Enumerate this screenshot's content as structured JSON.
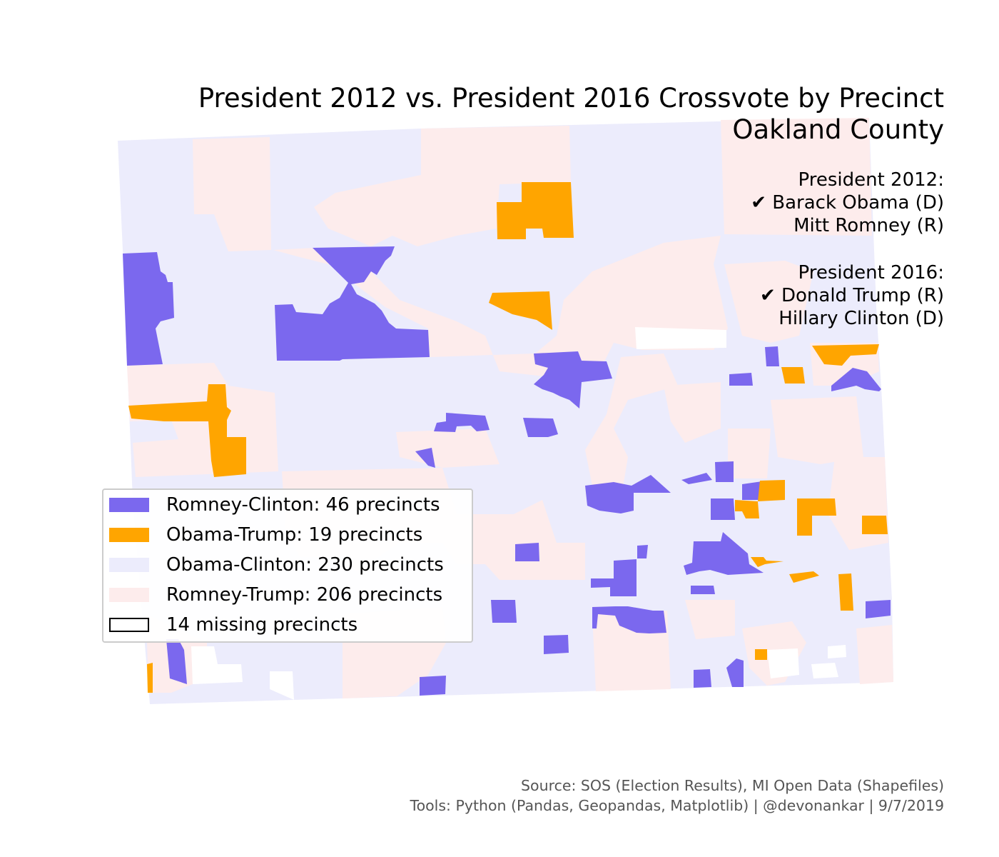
{
  "title": {
    "line1": "President 2012 vs. President 2016 Crossvote by Precinct",
    "line2": "Oakland County"
  },
  "elections": {
    "e2012": {
      "heading": "President 2012:",
      "winner": "✔ Barack Obama (D)",
      "loser": "Mitt Romney (R)"
    },
    "e2016": {
      "heading": "President 2016:",
      "winner": "✔ Donald Trump (R)",
      "loser": "Hillary Clinton (D)"
    }
  },
  "legend": [
    {
      "label": "Romney-Clinton: 46 precincts",
      "color": "#7b68ee"
    },
    {
      "label": "Obama-Trump: 19 precincts",
      "color": "#ffa500"
    },
    {
      "label": "Obama-Clinton: 230 precincts",
      "color": "#ececfc"
    },
    {
      "label": "Romney-Trump: 206 precincts",
      "color": "#fdecec"
    },
    {
      "label": "14 missing precincts",
      "color": "#ffffff",
      "outline": "#000000"
    }
  ],
  "source": {
    "line1": "Source: SOS (Election Results), MI Open Data (Shapefiles)",
    "line2": "Tools: Python (Pandas, Geopandas, Matplotlib) | @devonankar | 9/7/2019"
  }
}
